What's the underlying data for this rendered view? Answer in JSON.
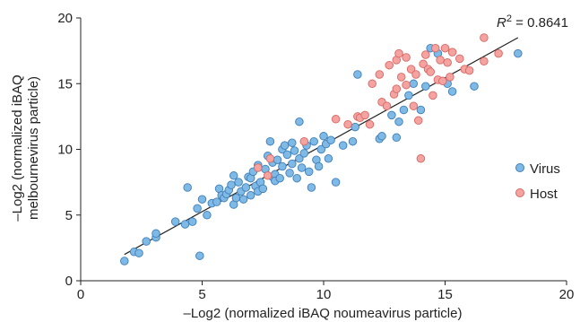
{
  "chart_data": {
    "type": "scatter",
    "xlabel": "–Log2 (normalized iBAQ noumeavirus particle)",
    "ylabel_lines": [
      "–Log2 (normalized iBAQ",
      "melbournevirus particle)"
    ],
    "xlim": [
      0,
      20
    ],
    "ylim": [
      0,
      20
    ],
    "x_ticks": [
      0,
      5,
      10,
      15,
      20
    ],
    "y_ticks": [
      0,
      5,
      10,
      15,
      20
    ],
    "legend_position": "right",
    "annotation": {
      "symbol": "R",
      "exponent": "2",
      "value_text": " = 0.8641"
    },
    "trendline": {
      "x": [
        1.8,
        18
      ],
      "y": [
        2.0,
        18.5
      ]
    },
    "series": [
      {
        "name": "Virus",
        "color": "#7fb9e6",
        "edge": "#3f7fb8",
        "points": [
          [
            1.8,
            1.5
          ],
          [
            2.2,
            2.2
          ],
          [
            2.4,
            2.1
          ],
          [
            2.7,
            3.0
          ],
          [
            3.1,
            3.3
          ],
          [
            3.1,
            3.6
          ],
          [
            3.9,
            4.5
          ],
          [
            4.3,
            4.3
          ],
          [
            4.4,
            7.1
          ],
          [
            4.6,
            4.5
          ],
          [
            4.9,
            1.9
          ],
          [
            4.8,
            5.5
          ],
          [
            5.0,
            6.2
          ],
          [
            5.2,
            5.0
          ],
          [
            5.4,
            5.9
          ],
          [
            5.6,
            6.0
          ],
          [
            5.7,
            7.0
          ],
          [
            5.8,
            6.5
          ],
          [
            5.9,
            6.3
          ],
          [
            6.0,
            6.6
          ],
          [
            6.1,
            6.9
          ],
          [
            6.2,
            7.3
          ],
          [
            6.3,
            8.0
          ],
          [
            6.3,
            5.8
          ],
          [
            6.4,
            6.3
          ],
          [
            6.5,
            7.5
          ],
          [
            6.6,
            6.8
          ],
          [
            6.7,
            6.2
          ],
          [
            6.8,
            7.1
          ],
          [
            6.9,
            7.9
          ],
          [
            7.0,
            6.5
          ],
          [
            7.0,
            7.8
          ],
          [
            7.1,
            8.3
          ],
          [
            7.2,
            7.2
          ],
          [
            7.3,
            6.8
          ],
          [
            7.3,
            8.8
          ],
          [
            7.4,
            7.5
          ],
          [
            7.5,
            7.0
          ],
          [
            7.6,
            8.5
          ],
          [
            7.7,
            9.5
          ],
          [
            7.8,
            10.6
          ],
          [
            7.9,
            7.9
          ],
          [
            7.9,
            9.0
          ],
          [
            8.0,
            8.1
          ],
          [
            8.0,
            7.6
          ],
          [
            8.1,
            9.2
          ],
          [
            8.2,
            7.8
          ],
          [
            8.3,
            8.7
          ],
          [
            8.3,
            10.0
          ],
          [
            8.4,
            10.3
          ],
          [
            8.5,
            9.6
          ],
          [
            8.6,
            8.2
          ],
          [
            8.7,
            8.9
          ],
          [
            8.7,
            10.5
          ],
          [
            8.8,
            9.9
          ],
          [
            8.9,
            7.8
          ],
          [
            9.0,
            9.3
          ],
          [
            9.0,
            12.1
          ],
          [
            9.1,
            8.6
          ],
          [
            9.2,
            9.7
          ],
          [
            9.3,
            10.3
          ],
          [
            9.4,
            8.3
          ],
          [
            9.5,
            7.1
          ],
          [
            9.6,
            10.6
          ],
          [
            9.7,
            9.2
          ],
          [
            9.8,
            8.7
          ],
          [
            9.9,
            10.0
          ],
          [
            10.0,
            11.0
          ],
          [
            10.1,
            10.4
          ],
          [
            10.2,
            9.3
          ],
          [
            10.3,
            10.7
          ],
          [
            10.5,
            7.5
          ],
          [
            10.8,
            10.3
          ],
          [
            11.2,
            10.6
          ],
          [
            11.3,
            11.7
          ],
          [
            11.4,
            15.7
          ],
          [
            12.3,
            10.8
          ],
          [
            12.4,
            11.0
          ],
          [
            12.8,
            12.6
          ],
          [
            13.0,
            10.9
          ],
          [
            13.1,
            12.1
          ],
          [
            13.3,
            13.0
          ],
          [
            13.5,
            14.1
          ],
          [
            13.7,
            15.0
          ],
          [
            14.0,
            13.0
          ],
          [
            14.2,
            14.8
          ],
          [
            14.4,
            17.7
          ],
          [
            14.7,
            17.3
          ],
          [
            15.1,
            15.0
          ],
          [
            15.3,
            14.4
          ],
          [
            16.2,
            14.8
          ],
          [
            18.0,
            17.3
          ]
        ]
      },
      {
        "name": "Host",
        "color": "#f4a3a1",
        "edge": "#d86762",
        "points": [
          [
            7.3,
            8.6
          ],
          [
            7.7,
            8.0
          ],
          [
            7.8,
            9.3
          ],
          [
            9.2,
            10.6
          ],
          [
            10.5,
            12.3
          ],
          [
            11.0,
            11.9
          ],
          [
            11.4,
            12.5
          ],
          [
            11.5,
            12.4
          ],
          [
            11.7,
            12.6
          ],
          [
            11.9,
            11.9
          ],
          [
            12.0,
            15.0
          ],
          [
            12.3,
            15.7
          ],
          [
            12.4,
            13.6
          ],
          [
            12.6,
            13.3
          ],
          [
            12.7,
            16.4
          ],
          [
            12.9,
            14.2
          ],
          [
            13.0,
            16.8
          ],
          [
            13.0,
            14.6
          ],
          [
            13.1,
            17.3
          ],
          [
            13.2,
            15.5
          ],
          [
            13.4,
            17.0
          ],
          [
            13.4,
            14.9
          ],
          [
            13.6,
            16.1
          ],
          [
            13.7,
            13.3
          ],
          [
            13.8,
            15.7
          ],
          [
            13.9,
            12.2
          ],
          [
            14.0,
            9.3
          ],
          [
            14.1,
            16.5
          ],
          [
            14.2,
            17.2
          ],
          [
            14.3,
            16.1
          ],
          [
            14.4,
            15.9
          ],
          [
            14.5,
            14.1
          ],
          [
            14.6,
            17.7
          ],
          [
            14.7,
            15.3
          ],
          [
            14.8,
            16.8
          ],
          [
            14.9,
            15.2
          ],
          [
            15.0,
            17.7
          ],
          [
            15.1,
            16.6
          ],
          [
            15.2,
            15.5
          ],
          [
            15.3,
            17.4
          ],
          [
            15.6,
            16.9
          ],
          [
            15.8,
            16.1
          ],
          [
            16.0,
            16.0
          ],
          [
            16.6,
            16.7
          ],
          [
            16.6,
            18.5
          ],
          [
            17.2,
            17.3
          ]
        ]
      }
    ]
  }
}
